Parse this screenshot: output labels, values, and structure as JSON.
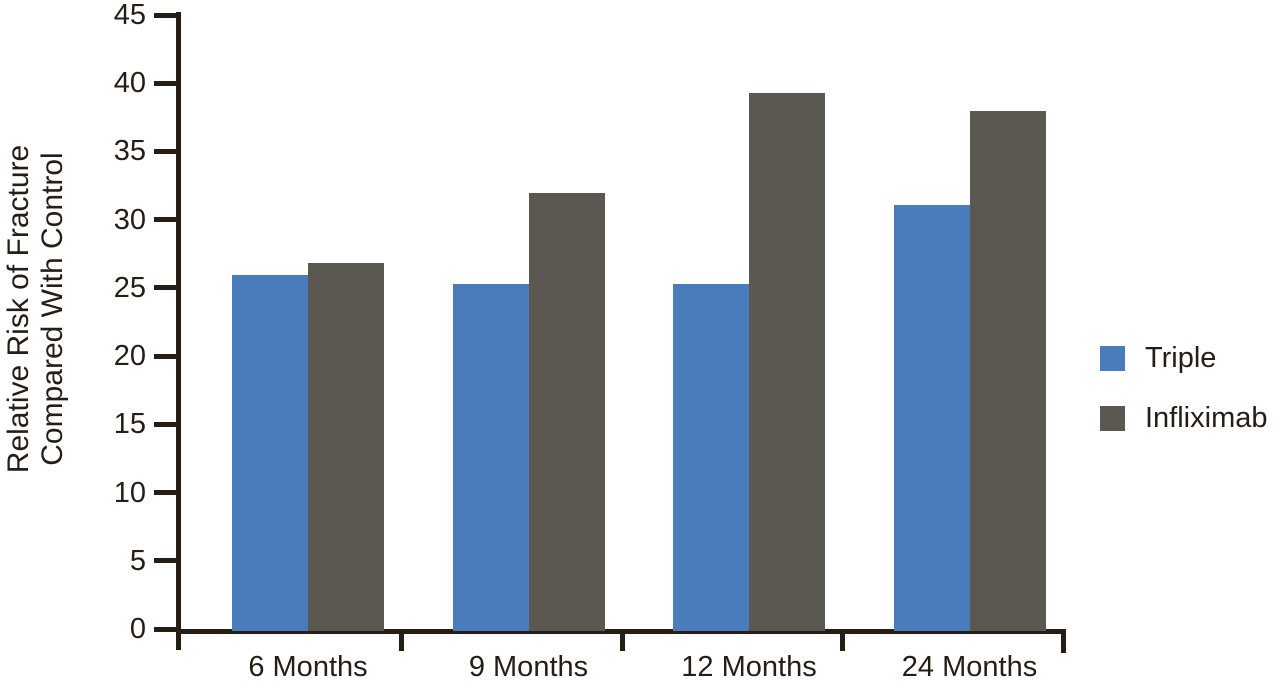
{
  "figure": {
    "background": "#ffffff",
    "axis_color": "#261e15"
  },
  "chart_data": {
    "type": "bar",
    "title": "",
    "xlabel": "",
    "ylabel_line1": "Relative Risk of Fracture",
    "ylabel_line2": "Compared With Control",
    "categories": [
      "6 Months",
      "9 Months",
      "12 Months",
      "24 Months"
    ],
    "series": [
      {
        "name": "Triple",
        "color": "#4a7cbc",
        "values": [
          26.1,
          25.4,
          25.4,
          31.2
        ]
      },
      {
        "name": "Infliximab",
        "color": "#5b5751",
        "values": [
          27.0,
          32.1,
          39.4,
          38.1
        ]
      }
    ],
    "ylim": [
      0,
      45
    ],
    "ytick_step": 5,
    "yticks": [
      0,
      5,
      10,
      15,
      20,
      25,
      30,
      35,
      40,
      45
    ],
    "grid": false,
    "legend_position": "right",
    "legend": [
      {
        "label": "Triple",
        "color": "#4a7cbc"
      },
      {
        "label": "Infliximab",
        "color": "#5b5751"
      }
    ]
  }
}
